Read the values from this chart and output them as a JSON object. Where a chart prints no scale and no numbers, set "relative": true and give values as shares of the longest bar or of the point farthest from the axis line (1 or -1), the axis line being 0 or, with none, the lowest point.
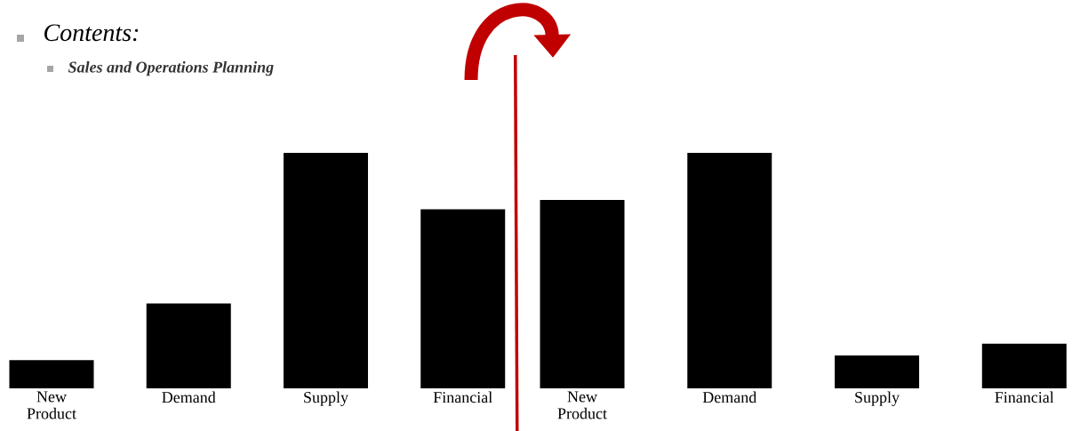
{
  "chart_data": [
    {
      "type": "bar",
      "title": "Contents:",
      "subtitle": "Sales and Operations Planning",
      "relative": true,
      "categories": [
        "New Product",
        "Demand",
        "Supply",
        "Financial"
      ],
      "color": "#000000",
      "values": [
        0.12,
        0.36,
        1,
        0.76
      ]
    },
    {
      "type": "bar",
      "relative": true,
      "categories": [
        "New Product",
        "Demand",
        "Supply",
        "Financial"
      ],
      "color": "#000000",
      "values": [
        0.8,
        1,
        0.14,
        0.19
      ]
    }
  ]
}
